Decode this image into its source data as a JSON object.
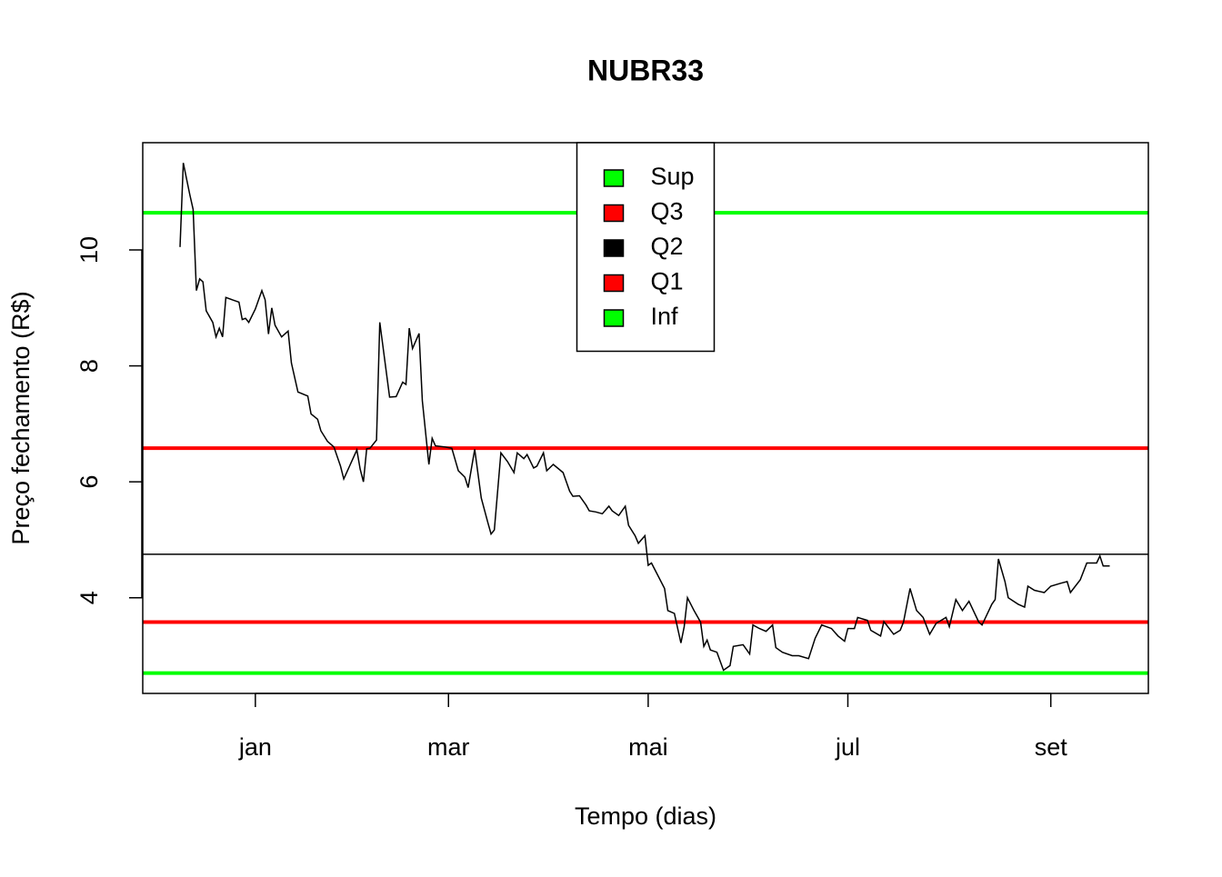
{
  "chart_data": {
    "type": "line",
    "title": "NUBR33",
    "x_label": "Tempo (dias)",
    "y_label": "Preço fechamento (R$)",
    "x": [
      -23,
      -22,
      -20,
      -19,
      -18,
      -17,
      -16,
      -15,
      -13,
      -12,
      -11,
      -10,
      -9,
      -7,
      -5,
      -4,
      -3,
      -2,
      0,
      2,
      3,
      4,
      5,
      6,
      8,
      10,
      11,
      13,
      16,
      17,
      19,
      20,
      22,
      24,
      26,
      27,
      29,
      31,
      32,
      33,
      34,
      35,
      37,
      38,
      41,
      43,
      45,
      46,
      47,
      48,
      50,
      51,
      53,
      54,
      55,
      58,
      60,
      62,
      64,
      65,
      67,
      69,
      71,
      72,
      73,
      75,
      77,
      79,
      80,
      82,
      83,
      85,
      86,
      88,
      89,
      91,
      94,
      96,
      97,
      99,
      101,
      102,
      104,
      106,
      108,
      109,
      111,
      113,
      114,
      116,
      117,
      119,
      120,
      121,
      123,
      125,
      126,
      128,
      130,
      131,
      132,
      134,
      136,
      137,
      138,
      139,
      141,
      143,
      145,
      146,
      149,
      151,
      152,
      154,
      156,
      158,
      159,
      161,
      164,
      166,
      169,
      171,
      173,
      176,
      178,
      180,
      181,
      183,
      184,
      187,
      188,
      191,
      192,
      195,
      197,
      198,
      200,
      202,
      204,
      206,
      208,
      211,
      212,
      214,
      216,
      218,
      221,
      222,
      225,
      226,
      227,
      229,
      230,
      233,
      235,
      236,
      238,
      241,
      243,
      246,
      248,
      249,
      252,
      254,
      257,
      258,
      259,
      261
    ],
    "values": [
      10.05,
      11.5,
      10.95,
      10.7,
      9.3,
      9.5,
      9.45,
      8.95,
      8.75,
      8.5,
      8.65,
      8.5,
      9.18,
      9.14,
      9.1,
      8.8,
      8.82,
      8.75,
      8.98,
      9.3,
      9.14,
      8.55,
      9.0,
      8.7,
      8.5,
      8.6,
      8.05,
      7.55,
      7.48,
      7.17,
      7.08,
      6.88,
      6.7,
      6.6,
      6.27,
      6.05,
      6.3,
      6.55,
      6.22,
      6.0,
      6.57,
      6.58,
      6.72,
      8.75,
      7.46,
      7.47,
      7.72,
      7.68,
      8.65,
      8.3,
      8.56,
      7.4,
      6.3,
      6.75,
      6.62,
      6.6,
      6.58,
      6.19,
      6.08,
      5.9,
      6.56,
      5.72,
      5.3,
      5.1,
      5.17,
      6.5,
      6.35,
      6.16,
      6.5,
      6.4,
      6.47,
      6.24,
      6.27,
      6.5,
      6.19,
      6.3,
      6.16,
      5.84,
      5.75,
      5.76,
      5.6,
      5.5,
      5.48,
      5.45,
      5.58,
      5.5,
      5.42,
      5.58,
      5.25,
      5.07,
      4.94,
      5.07,
      4.56,
      4.6,
      4.38,
      4.16,
      3.78,
      3.73,
      3.22,
      3.5,
      4.0,
      3.78,
      3.58,
      3.16,
      3.27,
      3.1,
      3.06,
      2.75,
      2.83,
      3.16,
      3.19,
      3.03,
      3.53,
      3.47,
      3.42,
      3.53,
      3.14,
      3.06,
      3.0,
      3.0,
      2.95,
      3.3,
      3.53,
      3.47,
      3.34,
      3.25,
      3.47,
      3.47,
      3.66,
      3.61,
      3.44,
      3.34,
      3.59,
      3.37,
      3.44,
      3.58,
      4.16,
      3.78,
      3.66,
      3.37,
      3.56,
      3.66,
      3.5,
      3.97,
      3.78,
      3.94,
      3.58,
      3.53,
      3.89,
      3.97,
      4.67,
      4.28,
      4.0,
      3.89,
      3.84,
      4.2,
      4.13,
      4.09,
      4.2,
      4.25,
      4.28,
      4.09,
      4.31,
      4.6,
      4.6,
      4.72,
      4.55,
      4.55
    ],
    "color": "#000000",
    "hlines": [
      {
        "name": "Sup",
        "color": "#00ff00",
        "value": 10.64
      },
      {
        "name": "Q3",
        "color": "#ff0000",
        "value": 6.58
      },
      {
        "name": "Q2",
        "color": "#000000",
        "value": 4.75
      },
      {
        "name": "Q1",
        "color": "#ff0000",
        "value": 3.58
      },
      {
        "name": "Inf",
        "color": "#00ff00",
        "value": 2.7
      }
    ],
    "xlim": [
      -34.4,
      272.8
    ],
    "ylim": [
      2.35,
      11.85
    ],
    "xticks": [
      {
        "value": 0,
        "label": "jan"
      },
      {
        "value": 59,
        "label": "mar"
      },
      {
        "value": 120,
        "label": "mai"
      },
      {
        "value": 181,
        "label": "jul"
      },
      {
        "value": 243,
        "label": "set"
      }
    ],
    "yticks": [
      4,
      6,
      8,
      10
    ],
    "legend": "top"
  }
}
